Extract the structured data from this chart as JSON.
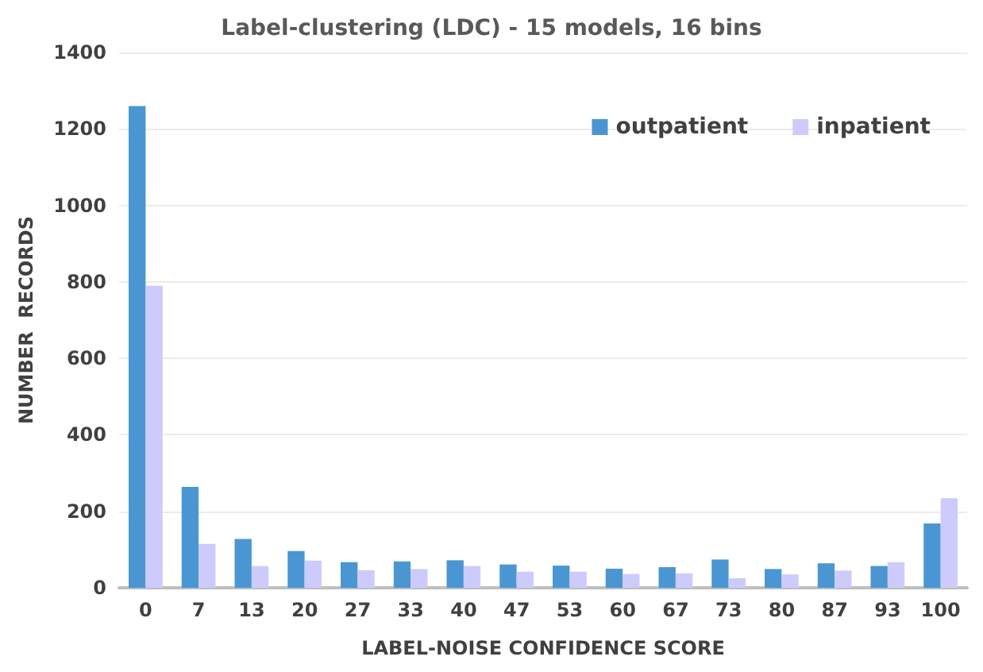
{
  "chart_data": {
    "type": "bar",
    "title": "Label-clustering (LDC) - 15 models, 16 bins",
    "xlabel": "LABEL-NOISE CONFIDENCE SCORE",
    "ylabel": "NUMBER  RECORDS",
    "categories": [
      "0",
      "7",
      "13",
      "20",
      "27",
      "33",
      "40",
      "47",
      "53",
      "60",
      "67",
      "73",
      "80",
      "87",
      "93",
      "100"
    ],
    "series": [
      {
        "name": "outpatient",
        "color": "#4a96d2",
        "values": [
          1260,
          264,
          128,
          96,
          67,
          69,
          72,
          61,
          58,
          50,
          54,
          74,
          49,
          64,
          57,
          168
        ]
      },
      {
        "name": "inpatient",
        "color": "#cccbfb",
        "values": [
          790,
          115,
          57,
          71,
          46,
          49,
          57,
          42,
          42,
          36,
          38,
          25,
          35,
          45,
          67,
          234
        ]
      }
    ],
    "ylim": [
      0,
      1400
    ],
    "yticks": [
      0,
      200,
      400,
      600,
      800,
      1000,
      1200,
      1400
    ],
    "grid": "y",
    "legend": "top right"
  }
}
